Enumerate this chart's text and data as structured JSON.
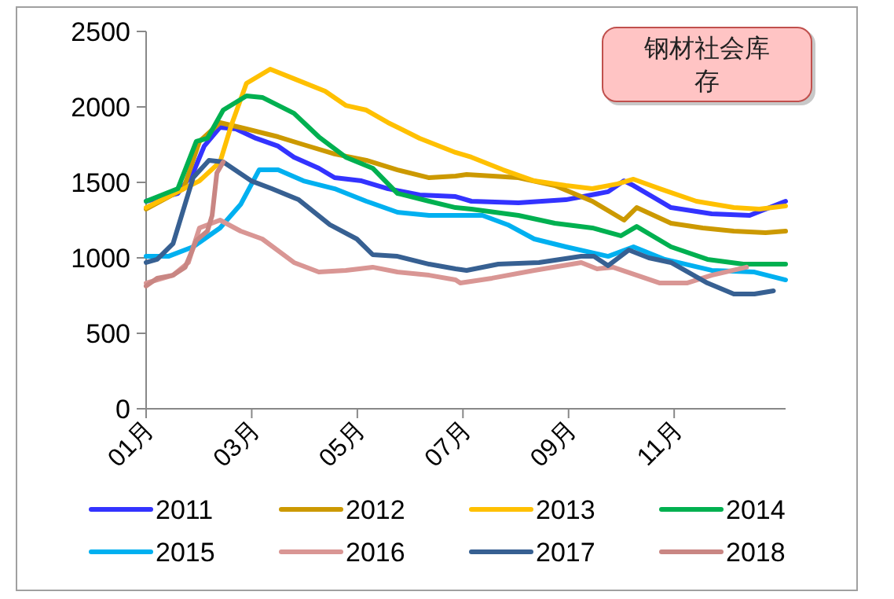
{
  "chart_data": {
    "type": "line",
    "title": "钢材社会库存",
    "xlim": [
      1,
      13.11
    ],
    "xticks": [
      {
        "value": 1,
        "label": "01月"
      },
      {
        "value": 3,
        "label": "03月"
      },
      {
        "value": 5,
        "label": "05月"
      },
      {
        "value": 7,
        "label": "07月"
      },
      {
        "value": 9,
        "label": "09月"
      },
      {
        "value": 11,
        "label": "11月"
      }
    ],
    "ylim": [
      0,
      2500
    ],
    "yticks": [
      0,
      500,
      1000,
      1500,
      2000,
      2500
    ],
    "grid": false,
    "legend": "bottom",
    "series": [
      {
        "name": "2011",
        "color": "#3333ff",
        "x": [
          1.0,
          1.6,
          1.89,
          2.1,
          2.4,
          2.7,
          3.08,
          3.5,
          3.8,
          4.27,
          4.57,
          5.08,
          5.58,
          6.18,
          6.86,
          7.16,
          8.05,
          8.95,
          9.75,
          10.05,
          10.23,
          10.94,
          11.71,
          12.43,
          13.11
        ],
        "values": [
          1375,
          1427,
          1563,
          1740,
          1865,
          1854,
          1792,
          1740,
          1667,
          1594,
          1531,
          1510,
          1458,
          1417,
          1406,
          1375,
          1365,
          1385,
          1438,
          1510,
          1479,
          1333,
          1292,
          1281,
          1375
        ]
      },
      {
        "name": "2012",
        "color": "#cc9900",
        "x": [
          1.0,
          1.71,
          2.01,
          2.4,
          2.9,
          3.5,
          3.98,
          4.57,
          5.17,
          5.76,
          6.36,
          6.86,
          7.07,
          8.05,
          8.74,
          9.45,
          10.05,
          10.29,
          10.94,
          11.54,
          12.13,
          12.73,
          13.11
        ],
        "values": [
          1323,
          1458,
          1771,
          1896,
          1854,
          1802,
          1750,
          1688,
          1646,
          1583,
          1531,
          1542,
          1552,
          1531,
          1479,
          1375,
          1250,
          1333,
          1229,
          1198,
          1177,
          1167,
          1177
        ]
      },
      {
        "name": "2013",
        "color": "#ffc000",
        "x": [
          1.0,
          2.01,
          2.4,
          2.61,
          2.9,
          3.35,
          3.8,
          4.39,
          4.78,
          5.17,
          5.58,
          6.18,
          6.86,
          7.16,
          7.76,
          8.35,
          8.95,
          9.45,
          9.93,
          10.23,
          10.73,
          11.42,
          12.13,
          12.61,
          13.11
        ],
        "values": [
          1333,
          1510,
          1635,
          1875,
          2156,
          2250,
          2187,
          2104,
          2010,
          1979,
          1896,
          1792,
          1698,
          1667,
          1583,
          1510,
          1479,
          1458,
          1490,
          1521,
          1458,
          1375,
          1333,
          1323,
          1344
        ]
      },
      {
        "name": "2014",
        "color": "#00b050",
        "x": [
          1.0,
          1.6,
          1.95,
          2.16,
          2.46,
          2.9,
          3.2,
          3.8,
          4.27,
          4.78,
          5.29,
          5.76,
          6.36,
          6.86,
          7.16,
          8.05,
          8.74,
          9.45,
          9.99,
          10.29,
          10.94,
          11.63,
          12.31,
          13.11
        ],
        "values": [
          1375,
          1458,
          1771,
          1792,
          1979,
          2073,
          2063,
          1958,
          1802,
          1667,
          1594,
          1427,
          1375,
          1333,
          1323,
          1281,
          1229,
          1198,
          1146,
          1208,
          1073,
          990,
          958,
          958
        ]
      },
      {
        "name": "2015",
        "color": "#00b0f0",
        "x": [
          1.0,
          1.42,
          1.89,
          2.4,
          2.79,
          3.14,
          3.5,
          3.98,
          4.57,
          5.17,
          5.76,
          6.36,
          6.86,
          7.37,
          7.85,
          8.35,
          8.95,
          9.75,
          10.23,
          10.82,
          11.71,
          12.52,
          13.11
        ],
        "values": [
          1010,
          1010,
          1073,
          1198,
          1354,
          1583,
          1583,
          1510,
          1458,
          1375,
          1302,
          1281,
          1281,
          1281,
          1219,
          1125,
          1073,
          1010,
          1073,
          990,
          917,
          906,
          854
        ]
      },
      {
        "name": "2016",
        "color": "#d99694",
        "x": [
          1.0,
          1.51,
          1.8,
          2.01,
          2.4,
          2.79,
          3.2,
          3.8,
          4.27,
          4.78,
          5.29,
          5.76,
          6.36,
          6.86,
          6.95,
          7.55,
          8.35,
          9.24,
          9.54,
          9.84,
          10.73,
          11.24,
          11.71,
          12.37
        ],
        "values": [
          833,
          885,
          969,
          1198,
          1250,
          1177,
          1125,
          969,
          906,
          917,
          938,
          906,
          885,
          854,
          833,
          865,
          917,
          969,
          927,
          938,
          833,
          833,
          885,
          938
        ]
      },
      {
        "name": "2017",
        "color": "#376092",
        "x": [
          1.0,
          1.21,
          1.51,
          1.89,
          2.19,
          2.46,
          2.99,
          3.38,
          3.89,
          4.48,
          4.99,
          5.29,
          5.76,
          6.36,
          6.86,
          7.07,
          7.67,
          8.44,
          9.24,
          9.48,
          9.75,
          10.14,
          10.52,
          10.94,
          11.63,
          12.13,
          12.52,
          12.88
        ],
        "values": [
          969,
          990,
          1094,
          1531,
          1646,
          1635,
          1510,
          1458,
          1385,
          1219,
          1125,
          1021,
          1010,
          958,
          927,
          917,
          958,
          969,
          1010,
          1010,
          948,
          1052,
          1000,
          969,
          833,
          760,
          760,
          781
        ]
      },
      {
        "name": "2018",
        "color": "#c98683",
        "x": [
          1.0,
          1.21,
          1.51,
          1.74,
          1.95,
          2.16,
          2.25,
          2.34,
          2.46
        ],
        "values": [
          813,
          865,
          885,
          938,
          1115,
          1177,
          1281,
          1563,
          1635
        ]
      }
    ]
  }
}
